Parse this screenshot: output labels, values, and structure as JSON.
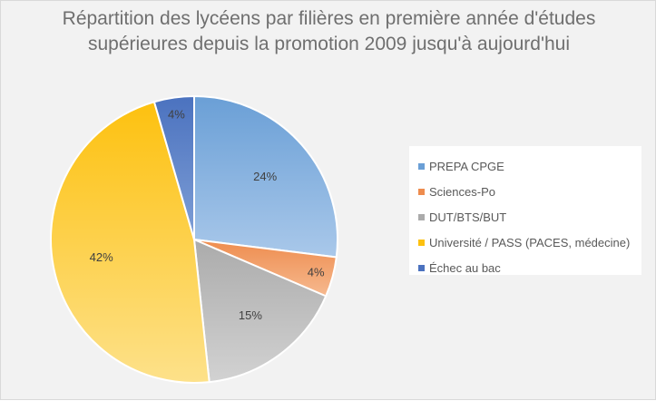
{
  "chart_data": {
    "type": "pie",
    "title_lines": [
      "Répartition des lycéens par filières en première année d'études",
      "supérieures depuis la promotion 2009 jusqu'à aujourd'hui"
    ],
    "series": [
      {
        "name": "PREPA CPGE",
        "value": 24,
        "label": "24%",
        "color_light": "#a9c8ea",
        "color_dark": "#6a9fd6"
      },
      {
        "name": "Sciences-Po",
        "value": 4,
        "label": "4%",
        "color_light": "#f6b98f",
        "color_dark": "#ee8c4e"
      },
      {
        "name": "DUT/BTS/BUT",
        "value": 15,
        "label": "15%",
        "color_light": "#d2d2d2",
        "color_dark": "#ababab"
      },
      {
        "name": "Université / PASS (PACES, médecine)",
        "value": 42,
        "label": "42%",
        "color_light": "#fde18a",
        "color_dark": "#fdc10f"
      },
      {
        "name": "Échec au bac",
        "value": 4,
        "label": "4%",
        "color_light": "#7f9fd6",
        "color_dark": "#4b72bf"
      }
    ],
    "legend_position": "right",
    "start_angle_deg": 0,
    "direction": "clockwise"
  }
}
